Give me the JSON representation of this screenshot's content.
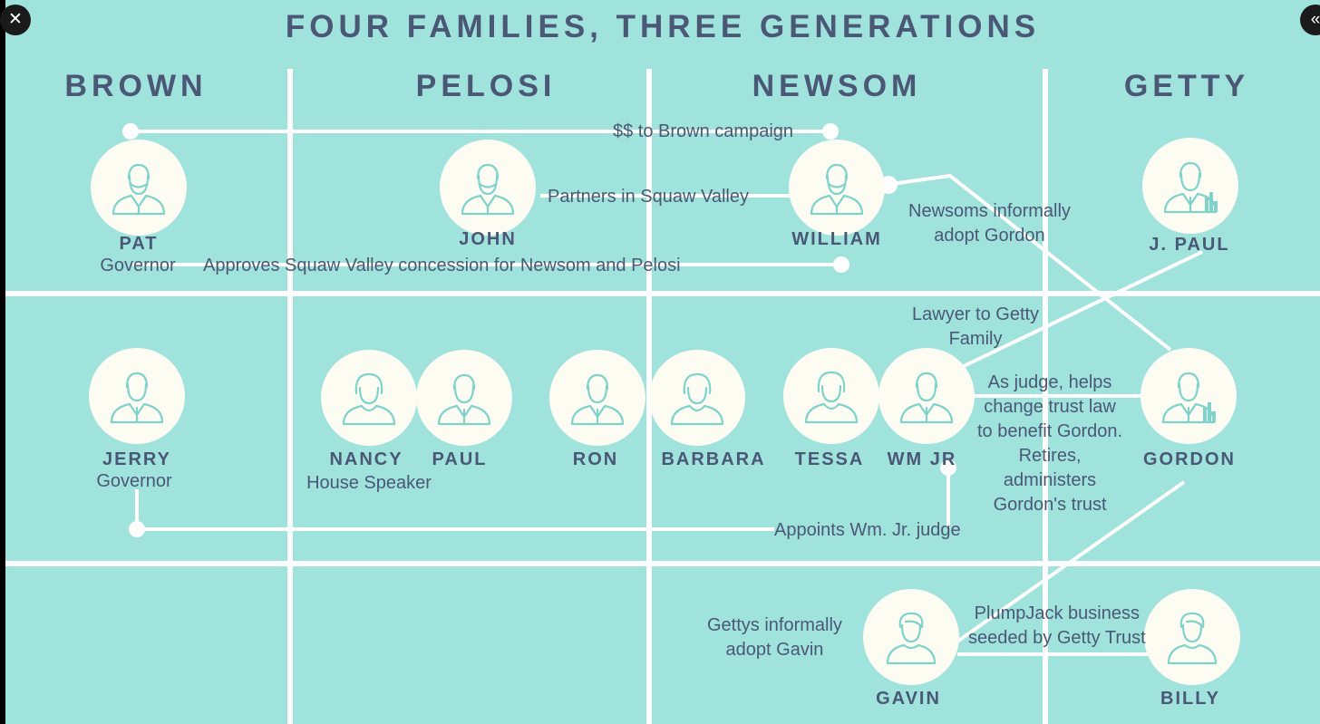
{
  "title": "FOUR FAMILIES, THREE GENERATIONS",
  "families": [
    "BROWN",
    "PELOSI",
    "NEWSOM",
    "GETTY"
  ],
  "people": {
    "pat": {
      "name": "PAT",
      "role": "Governor"
    },
    "john": {
      "name": "JOHN"
    },
    "william": {
      "name": "WILLIAM"
    },
    "jpaul": {
      "name": "J. PAUL"
    },
    "jerry": {
      "name": "JERRY",
      "role": "Governor"
    },
    "nancy": {
      "name": "NANCY",
      "role": "House Speaker"
    },
    "paul": {
      "name": "PAUL"
    },
    "ron": {
      "name": "RON"
    },
    "barbara": {
      "name": "BARBARA"
    },
    "tessa": {
      "name": "TESSA"
    },
    "wmjr": {
      "name": "WM JR"
    },
    "gordon": {
      "name": "GORDON"
    },
    "gavin": {
      "name": "GAVIN"
    },
    "billy": {
      "name": "BILLY"
    }
  },
  "annotations": {
    "campaign": "$$ to Brown campaign",
    "squaw_partners": "Partners in Squaw Valley",
    "concession": "Approves Squaw Valley concession for Newsom and Pelosi",
    "adopt_gordon": "Newsoms informally\nadopt Gordon",
    "lawyer": "Lawyer to Getty\nFamily",
    "judge": "As judge, helps\nchange trust law\nto benefit Gordon.\nRetires,\nadministers\nGordon's trust",
    "appoints": "Appoints Wm. Jr. judge",
    "adopt_gavin": "Gettys informally\nadopt Gavin",
    "plumpjack": "PlumpJack business\nseeded by Getty Trust"
  },
  "colors": {
    "background": "#9fe3dc",
    "lines": "#ffffff",
    "text": "#4b5875",
    "node": "#fdfcf3",
    "icon": "#7fd3cb"
  },
  "icons": {
    "close": "close-icon",
    "side": "chevron-left-icon"
  }
}
